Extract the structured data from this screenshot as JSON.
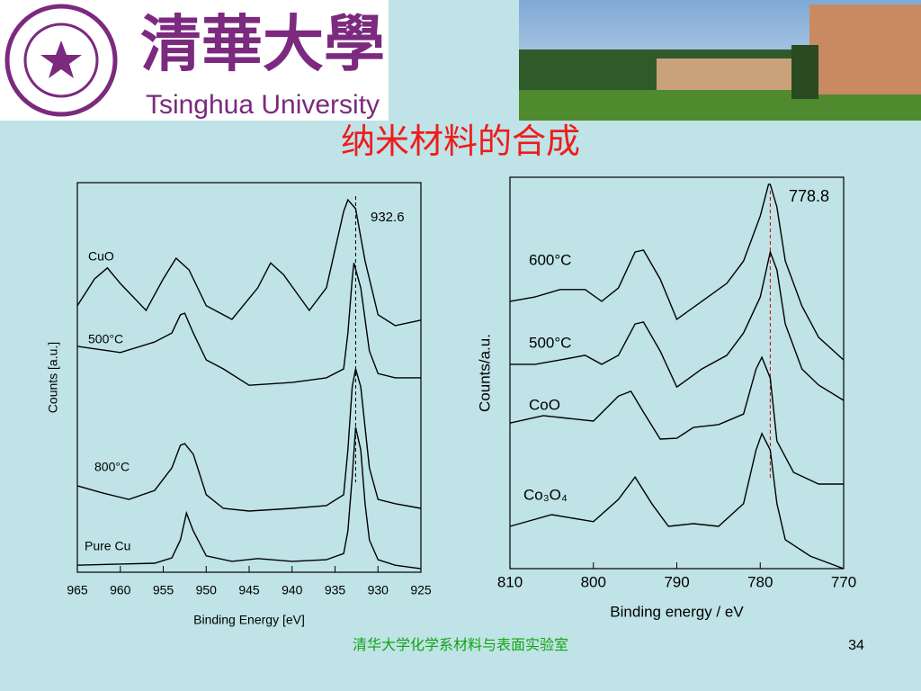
{
  "header": {
    "logo_chars": "清華大學",
    "logo_text": "Tsinghua University"
  },
  "title": "纳米材料的合成",
  "footer": {
    "text": "清华大学化学系材料与表面实验室",
    "page": "34"
  },
  "chart_data": [
    {
      "type": "line",
      "xlabel": "Binding Energy [eV]",
      "ylabel": "Counts [a.u.]",
      "xlim": [
        965,
        925
      ],
      "ylim": [
        0,
        100
      ],
      "xticks": [
        965,
        960,
        955,
        950,
        945,
        940,
        935,
        930,
        925
      ],
      "marker_line": 932.6,
      "marker_color": "#000000",
      "color": "#000000",
      "series": [
        {
          "name": "CuO",
          "x": [
            965,
            963,
            961.5,
            960,
            957,
            955,
            953.5,
            952,
            950,
            947,
            944,
            942.5,
            941,
            938,
            936,
            934,
            933.5,
            932.6,
            931.5,
            930,
            928,
            925
          ],
          "values": [
            68.4,
            75.3,
            78.1,
            74.1,
            67.2,
            75.3,
            80.6,
            77.6,
            68.4,
            64.9,
            73.0,
            79.4,
            76.4,
            67.2,
            73.0,
            92.6,
            95.6,
            93.3,
            79.9,
            66.1,
            63.3,
            64.7
          ]
        },
        {
          "name": "500°C",
          "x": [
            965,
            960,
            956,
            954,
            953,
            952.5,
            951.5,
            950,
            948,
            945,
            940,
            936,
            934,
            933.5,
            933,
            932.8,
            932,
            931,
            930,
            928,
            925
          ],
          "values": [
            58.0,
            56.4,
            59.1,
            61.4,
            66.1,
            66.5,
            61.4,
            54.5,
            52.2,
            48.0,
            48.7,
            49.9,
            52.2,
            61.4,
            75.3,
            79.4,
            73.0,
            56.8,
            51.0,
            49.9,
            49.9
          ]
        },
        {
          "name": "800°C",
          "x": [
            965,
            962,
            959,
            956,
            954,
            953,
            952.5,
            951.5,
            950,
            948,
            945,
            940,
            936,
            934,
            933.5,
            933,
            932.6,
            932,
            931,
            930,
            928,
            925
          ],
          "values": [
            22.2,
            20.3,
            18.7,
            21.0,
            26.8,
            32.6,
            33.0,
            30.3,
            19.9,
            16.4,
            15.7,
            16.4,
            17.1,
            19.9,
            31.4,
            47.6,
            52.2,
            47.6,
            26.8,
            18.7,
            17.6,
            16.4
          ]
        },
        {
          "name": "Pure Cu",
          "x": [
            965,
            960,
            956,
            954,
            953,
            952.3,
            951.5,
            950,
            947,
            944,
            940,
            936,
            934,
            933.5,
            933,
            932.6,
            932,
            931.5,
            931,
            930,
            928,
            925
          ],
          "values": [
            1.8,
            2.1,
            2.3,
            3.7,
            8.3,
            15.2,
            10.6,
            4.2,
            2.8,
            3.5,
            2.8,
            3.2,
            4.8,
            10.6,
            24.5,
            37.2,
            31.4,
            17.6,
            8.3,
            3.2,
            1.8,
            0.9
          ]
        }
      ]
    },
    {
      "type": "line",
      "xlabel": "Binding energy / eV",
      "ylabel": "Counts/a.u.",
      "xlim": [
        810,
        770
      ],
      "ylim": [
        0,
        100
      ],
      "xticks": [
        810,
        800,
        790,
        780,
        770
      ],
      "marker_line": 778.8,
      "marker_color": "#cc0000",
      "color": "#000000",
      "series": [
        {
          "name": "600°C",
          "x": [
            810,
            807,
            804,
            801,
            799,
            797,
            795,
            794,
            792,
            790,
            787,
            784,
            782,
            780,
            779,
            778.8,
            778,
            777,
            775,
            773,
            770
          ],
          "values": [
            68.3,
            69.4,
            71.3,
            71.3,
            68.3,
            71.7,
            80.9,
            81.4,
            74.0,
            63.7,
            68.3,
            72.9,
            78.6,
            90.1,
            98.2,
            98.2,
            92.4,
            78.6,
            67.1,
            59.1,
            53.3
          ]
        },
        {
          "name": "500°C",
          "x": [
            810,
            807,
            804,
            801,
            799,
            797,
            795,
            794,
            792,
            790,
            787,
            784,
            782,
            780,
            778.8,
            778,
            777,
            775,
            773,
            770
          ],
          "values": [
            52.2,
            52.2,
            53.3,
            54.5,
            52.2,
            54.5,
            62.5,
            63.0,
            55.6,
            46.4,
            51.0,
            54.5,
            60.2,
            69.4,
            80.9,
            76.3,
            62.5,
            51.0,
            46.9,
            43.0
          ]
        },
        {
          "name": "CoO",
          "x": [
            810,
            806,
            803,
            800,
            797,
            795.5,
            794,
            792,
            790,
            788,
            785,
            782,
            780.5,
            779.8,
            778.8,
            778,
            776,
            773,
            770
          ],
          "values": [
            37.2,
            39.1,
            38.4,
            37.7,
            44.1,
            45.3,
            40.0,
            33.1,
            33.3,
            36.1,
            36.8,
            39.5,
            51.0,
            54.0,
            48.7,
            32.6,
            24.6,
            21.6,
            21.6
          ]
        },
        {
          "name": "Co₃O₄",
          "x": [
            810,
            805,
            800,
            797,
            795,
            793,
            791,
            788,
            785,
            782,
            780.5,
            779.8,
            778.8,
            778,
            777,
            774,
            770
          ],
          "values": [
            10.8,
            13.8,
            12.0,
            17.7,
            23.4,
            16.6,
            10.8,
            11.5,
            10.8,
            16.6,
            30.3,
            34.5,
            30.3,
            16.6,
            7.4,
            3.2,
            0
          ]
        }
      ]
    }
  ]
}
